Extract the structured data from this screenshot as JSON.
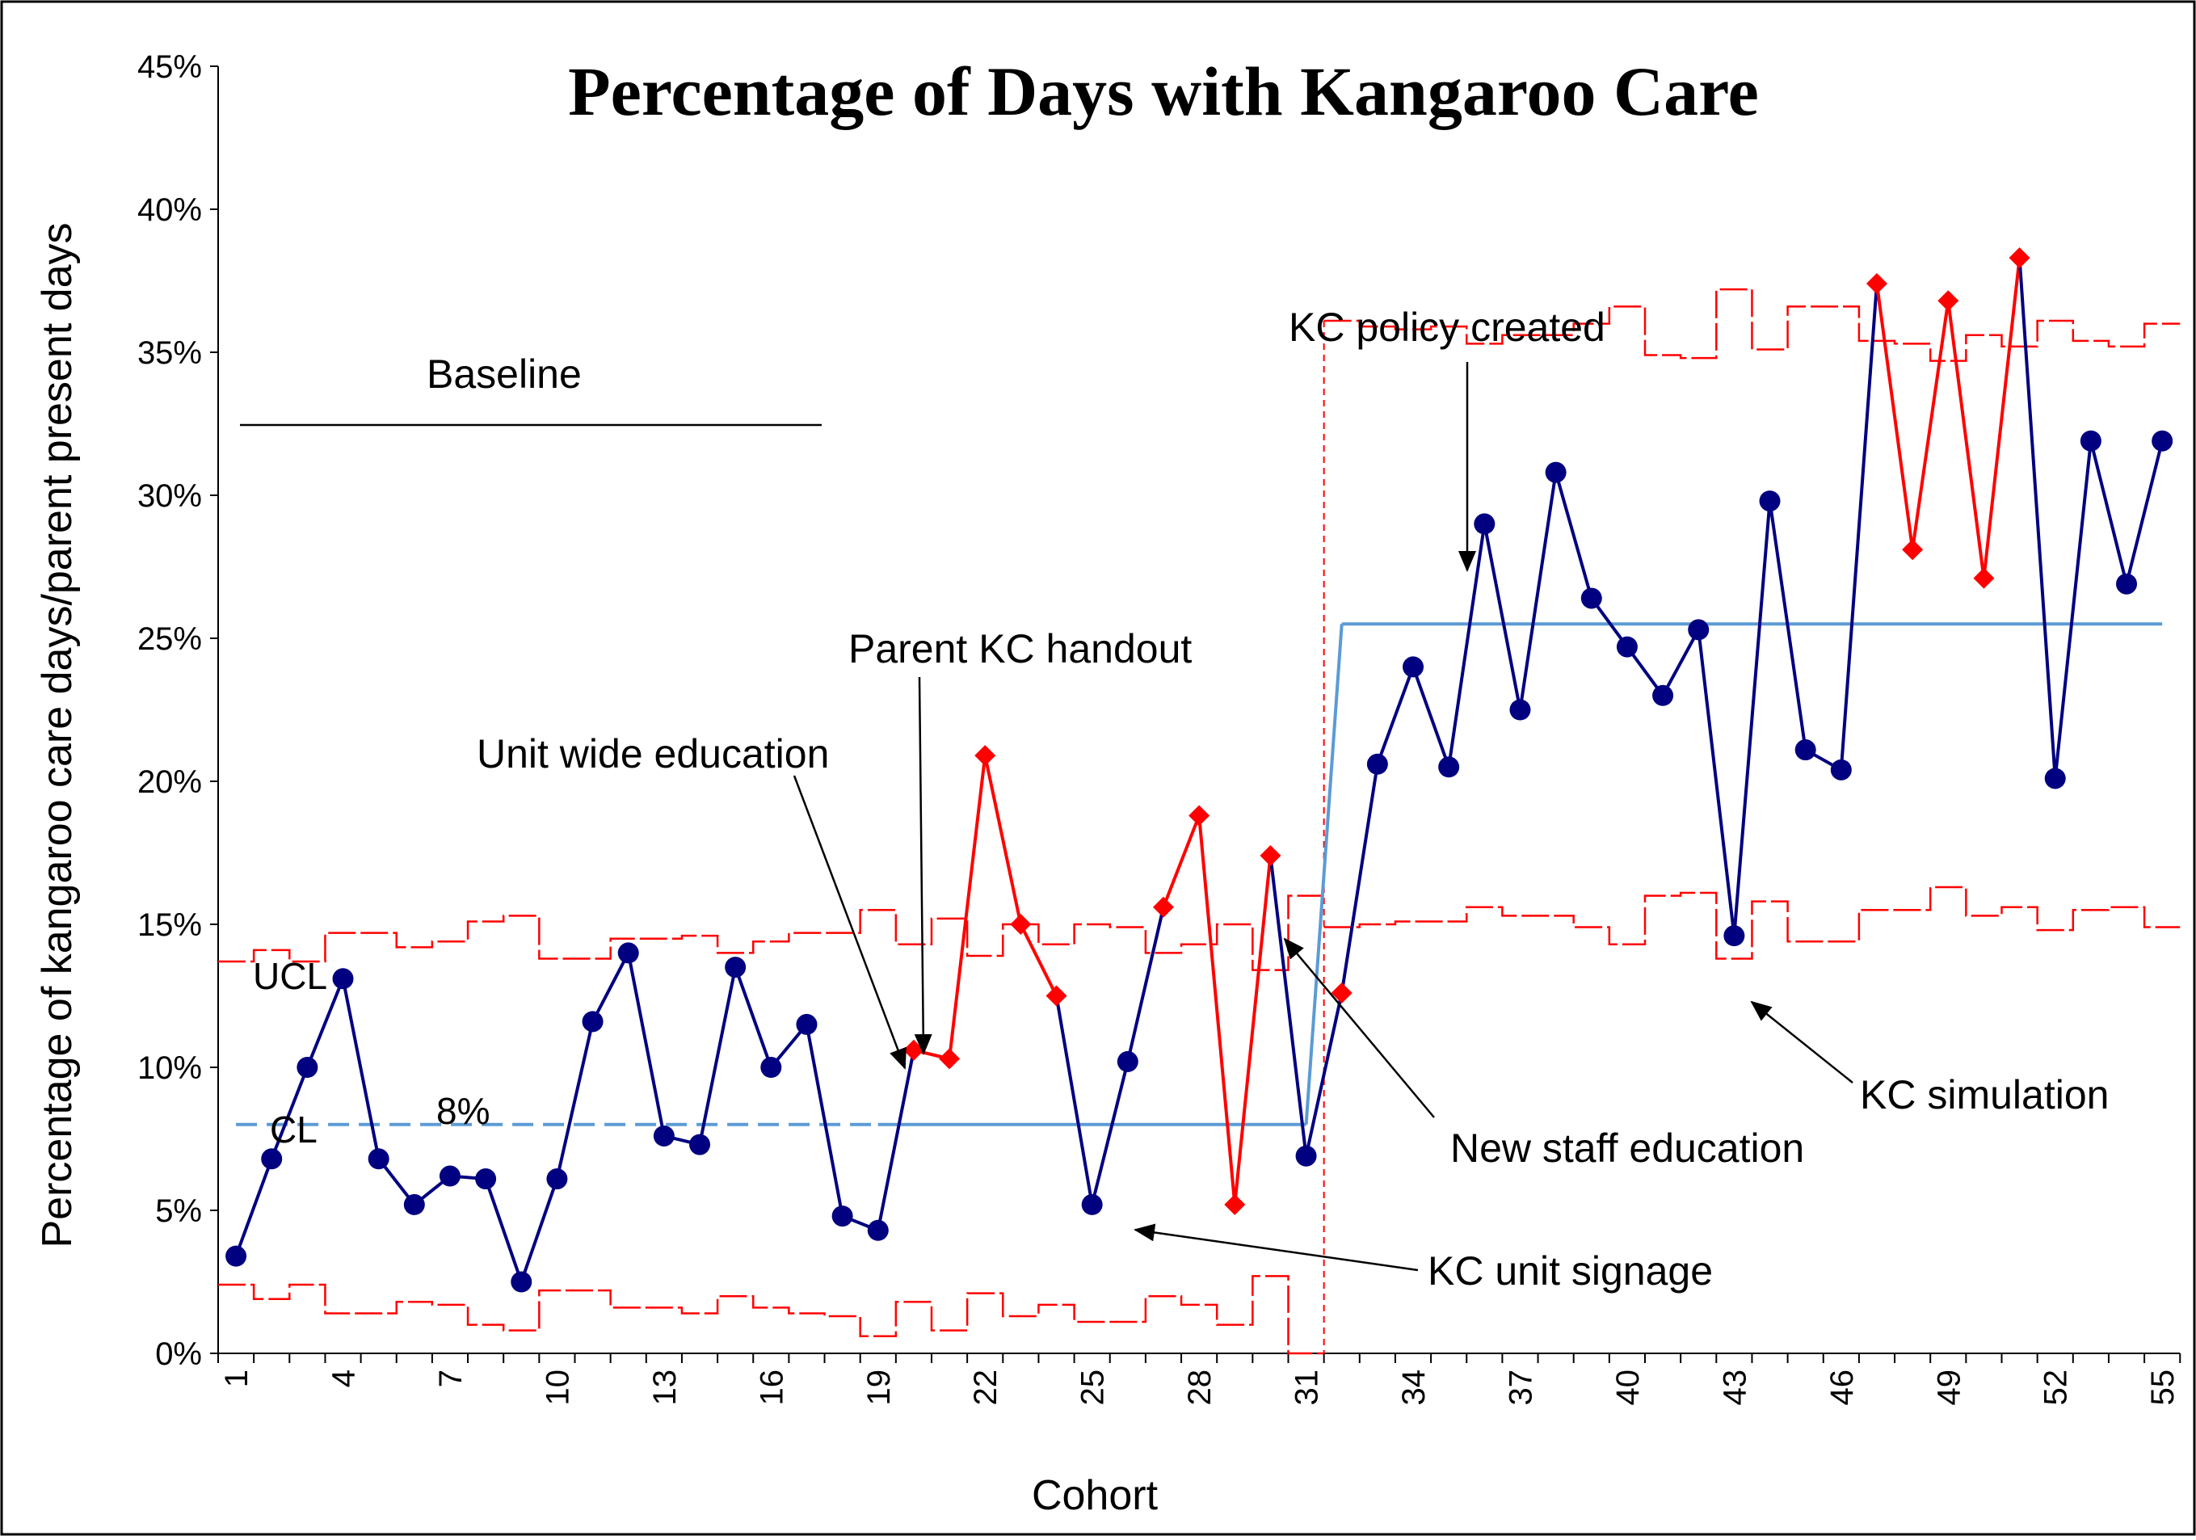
{
  "chart_data": {
    "type": "line",
    "title": "Percentage of Days with Kangaroo Care",
    "xlabel": "Cohort",
    "ylabel": "Percentage of kangaroo care days/parent present days",
    "ylim": [
      0,
      45
    ],
    "y_ticks": [
      "0%",
      "5%",
      "10%",
      "15%",
      "20%",
      "25%",
      "30%",
      "35%",
      "40%",
      "45%"
    ],
    "x_ticks": [
      "1",
      "4",
      "7",
      "10",
      "13",
      "16",
      "19",
      "22",
      "25",
      "28",
      "31",
      "34",
      "37",
      "40",
      "43",
      "46",
      "49",
      "52",
      "55"
    ],
    "x": [
      1,
      2,
      3,
      4,
      5,
      6,
      7,
      8,
      9,
      10,
      11,
      12,
      13,
      14,
      15,
      16,
      17,
      18,
      19,
      20,
      21,
      22,
      23,
      24,
      25,
      26,
      27,
      28,
      29,
      30,
      31,
      32,
      33,
      34,
      35,
      36,
      37,
      38,
      39,
      40,
      41,
      42,
      43,
      44,
      45,
      46,
      47,
      48,
      49,
      50,
      51,
      52,
      53,
      54,
      55
    ],
    "series": [
      {
        "name": "",
        "values": [
          3.4,
          6.8,
          10.0,
          13.1,
          6.8,
          5.2,
          6.2,
          6.1,
          2.5,
          6.1,
          11.6,
          14.0,
          7.6,
          7.3,
          13.5,
          10.0,
          11.5,
          4.8,
          4.3,
          10.6,
          10.3,
          20.9,
          15.0,
          12.5,
          5.2,
          10.2,
          15.6,
          18.8,
          5.2,
          17.4,
          6.9,
          12.6,
          20.6,
          24.0,
          20.5,
          29.0,
          22.5,
          30.8,
          26.4,
          24.7,
          23.0,
          25.3,
          14.6,
          29.8,
          21.1,
          20.4,
          37.4,
          28.1,
          36.8,
          27.1,
          38.3,
          20.1,
          31.9,
          26.9,
          31.9
        ],
        "special_cause": [
          20,
          21,
          22,
          23,
          24,
          27,
          28,
          29,
          30,
          32,
          47,
          48,
          49,
          50,
          51
        ],
        "color": "#000080",
        "special_color": "#ff0000"
      }
    ],
    "center_line": [
      {
        "x_from": 1,
        "x_to": 31,
        "value": 8.0,
        "label": "8%"
      },
      {
        "x_from": 32,
        "x_to": 55,
        "value": 25.5
      }
    ],
    "ucl": [
      13.7,
      14.1,
      13.7,
      14.7,
      14.7,
      14.2,
      14.4,
      15.1,
      15.3,
      13.8,
      13.8,
      14.5,
      14.5,
      14.6,
      14.0,
      14.4,
      14.7,
      14.7,
      15.5,
      14.3,
      15.2,
      13.9,
      15.0,
      14.3,
      15.0,
      14.9,
      14.0,
      14.3,
      15.0,
      13.4,
      16.0,
      36.1,
      35.9,
      35.8,
      35.9,
      35.3,
      35.6,
      35.6,
      36.0,
      36.6,
      34.9,
      34.8,
      37.2,
      35.1,
      36.6,
      36.6,
      35.4,
      35.3,
      34.7,
      35.6,
      35.2,
      36.1,
      35.4,
      35.2,
      36.0
    ],
    "lcl": [
      2.4,
      1.9,
      2.4,
      1.4,
      1.4,
      1.8,
      1.7,
      1.0,
      0.8,
      2.2,
      2.2,
      1.6,
      1.6,
      1.4,
      2.0,
      1.6,
      1.4,
      1.3,
      0.6,
      1.8,
      0.8,
      2.1,
      1.3,
      1.7,
      1.1,
      1.1,
      2.0,
      1.7,
      1.0,
      2.7,
      0.0,
      14.9,
      15.0,
      15.1,
      15.1,
      15.6,
      15.3,
      15.3,
      14.9,
      14.3,
      16.0,
      16.1,
      13.8,
      15.8,
      14.4,
      14.4,
      15.5,
      15.5,
      16.3,
      15.3,
      15.6,
      14.8,
      15.5,
      15.6,
      14.9
    ],
    "phase_break_x": 31.5,
    "labels": {
      "ucl": "UCL",
      "cl": "CL",
      "baseline": "Baseline"
    },
    "annotations": [
      {
        "text": "KC policy created",
        "target_x": 36
      },
      {
        "text": "Parent KC handout",
        "target_x": 20.5
      },
      {
        "text": "Unit wide education",
        "target_x": 20
      },
      {
        "text": "New staff education",
        "target_x": 30
      },
      {
        "text": "KC unit signage",
        "target_x": 26
      },
      {
        "text": "KC simulation",
        "target_x": 44
      }
    ],
    "grid": false,
    "legend": "none"
  }
}
